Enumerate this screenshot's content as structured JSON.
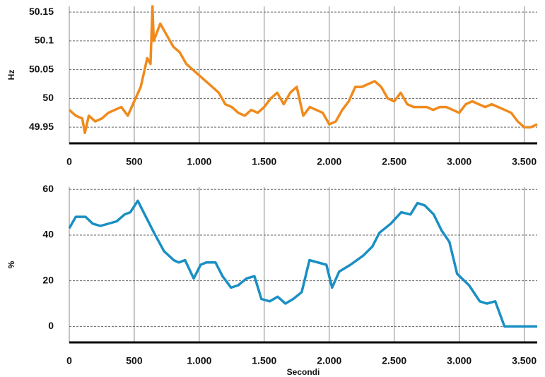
{
  "chart_data": [
    {
      "type": "line",
      "y_label": "Hz",
      "color": "#f08a1c",
      "x": [
        0,
        50,
        100,
        120,
        150,
        200,
        250,
        300,
        350,
        400,
        450,
        500,
        550,
        600,
        625,
        640,
        650,
        700,
        750,
        800,
        850,
        900,
        950,
        1000,
        1050,
        1100,
        1150,
        1200,
        1250,
        1300,
        1350,
        1400,
        1450,
        1500,
        1550,
        1600,
        1650,
        1700,
        1750,
        1800,
        1850,
        1900,
        1950,
        2000,
        2050,
        2100,
        2150,
        2200,
        2250,
        2300,
        2350,
        2400,
        2450,
        2500,
        2550,
        2600,
        2650,
        2700,
        2750,
        2800,
        2850,
        2900,
        2950,
        3000,
        3050,
        3100,
        3150,
        3200,
        3250,
        3300,
        3350,
        3400,
        3450,
        3500,
        3550,
        3600
      ],
      "values": [
        49.98,
        49.97,
        49.965,
        49.94,
        49.97,
        49.96,
        49.965,
        49.975,
        49.98,
        49.985,
        49.97,
        49.995,
        50.02,
        50.07,
        50.06,
        50.16,
        50.1,
        50.13,
        50.11,
        50.09,
        50.08,
        50.06,
        50.05,
        50.04,
        50.03,
        50.02,
        50.01,
        49.99,
        49.985,
        49.975,
        49.97,
        49.98,
        49.975,
        49.985,
        50.0,
        50.01,
        49.99,
        50.01,
        50.02,
        49.97,
        49.985,
        49.98,
        49.975,
        49.955,
        49.96,
        49.98,
        49.995,
        50.02,
        50.02,
        50.025,
        50.03,
        50.02,
        50.0,
        49.995,
        50.01,
        49.99,
        49.985,
        49.985,
        49.985,
        49.98,
        49.985,
        49.985,
        49.98,
        49.975,
        49.99,
        49.995,
        49.99,
        49.985,
        49.99,
        49.985,
        49.98,
        49.975,
        49.96,
        49.95,
        49.95,
        49.955
      ],
      "xlim": [
        0,
        3600
      ],
      "ylim": [
        49.922,
        50.16
      ],
      "xticks": [
        0,
        500,
        {
          "value": 1000,
          "label": "1.000"
        },
        {
          "value": 1500,
          "label": "1.500"
        },
        {
          "value": 2000,
          "label": "2.000"
        },
        {
          "value": 2500,
          "label": "2.500"
        },
        {
          "value": 3000,
          "label": "3.000"
        },
        {
          "value": 3500,
          "label": "3.500"
        }
      ],
      "yticks": [
        49.95,
        50,
        50.05,
        50.1,
        50.15
      ],
      "grid": true
    },
    {
      "type": "line",
      "y_label": "%",
      "x_label": "Secondi",
      "color": "#1a8fc4",
      "x": [
        0,
        50,
        125,
        180,
        240,
        365,
        425,
        470,
        527,
        652,
        728,
        804,
        842,
        891,
        957,
        1011,
        1054,
        1125,
        1179,
        1245,
        1299,
        1364,
        1424,
        1478,
        1543,
        1603,
        1663,
        1723,
        1788,
        1848,
        1978,
        2022,
        2076,
        2163,
        2261,
        2332,
        2386,
        2473,
        2554,
        2625,
        2679,
        2734,
        2804,
        2864,
        2924,
        2984,
        3076,
        3158,
        3212,
        3277,
        3348,
        3600
      ],
      "values": [
        43,
        48,
        48,
        45,
        44,
        46,
        49,
        50,
        55,
        41,
        33,
        29,
        28,
        29,
        21,
        27,
        28,
        28,
        22,
        17,
        18,
        21,
        22,
        12,
        11,
        13,
        10,
        12,
        15,
        29,
        27,
        17,
        24,
        27,
        31,
        35,
        41,
        45,
        50,
        49,
        54,
        53,
        49,
        42,
        37,
        23,
        18,
        11,
        10,
        11,
        0,
        0
      ],
      "xlim": [
        0,
        3600
      ],
      "ylim": [
        -7,
        61
      ],
      "xticks": [
        0,
        500,
        {
          "value": 1000,
          "label": "1.000"
        },
        {
          "value": 1500,
          "label": "1.500"
        },
        {
          "value": 2000,
          "label": "2.000"
        },
        {
          "value": 2500,
          "label": "2.500"
        },
        {
          "value": 3000,
          "label": "3.000"
        },
        {
          "value": 3500,
          "label": "3.500"
        }
      ],
      "yticks": [
        0,
        20,
        40,
        60
      ],
      "grid": true
    }
  ]
}
